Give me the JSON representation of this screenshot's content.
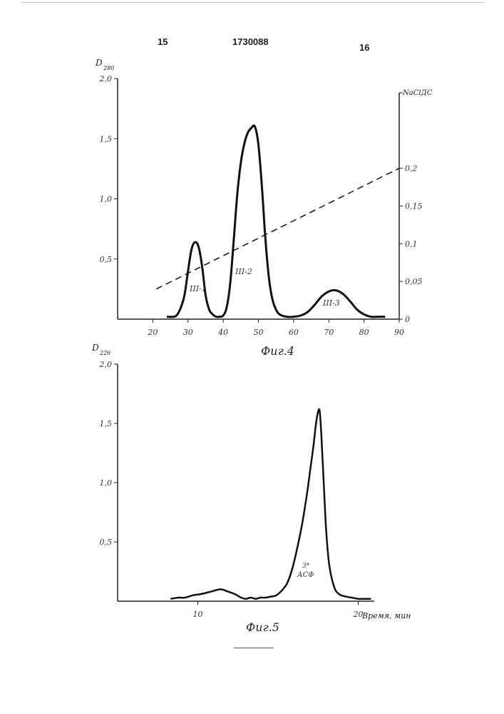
{
  "page": {
    "left_number": "15",
    "patent_number": "1730088",
    "right_number": "16"
  },
  "chart_data": [
    {
      "type": "line",
      "caption": "Фиг.4",
      "ylabel_main": "D",
      "ylabel_sub": "280",
      "ylabel_right": "NaСlДС",
      "xlim": [
        10,
        90
      ],
      "ylim": [
        0,
        2.0
      ],
      "y2lim": [
        0,
        0.3
      ],
      "x_ticks": [
        "20",
        "30",
        "40",
        "50",
        "60",
        "70",
        "80",
        "90"
      ],
      "y_ticks": [
        "2,0",
        "1,5",
        "1,0",
        "0,5"
      ],
      "y2_ticks": [
        "0,2",
        "0,15",
        "0,1",
        "0,05",
        "0"
      ],
      "series": [
        {
          "x": [
            24,
            26,
            27,
            28,
            29,
            30,
            31,
            32,
            33,
            34,
            35,
            36,
            37,
            38,
            39,
            40,
            41,
            42,
            43,
            44,
            45,
            46,
            47,
            48,
            49,
            50,
            51,
            52,
            53,
            54,
            55,
            56,
            58,
            60,
            62,
            64,
            66,
            68,
            70,
            72,
            74,
            76,
            78,
            80,
            82,
            84,
            86
          ],
          "values": [
            0.02,
            0.02,
            0.04,
            0.1,
            0.2,
            0.4,
            0.58,
            0.64,
            0.6,
            0.44,
            0.2,
            0.08,
            0.04,
            0.02,
            0.02,
            0.03,
            0.1,
            0.3,
            0.66,
            1.04,
            1.3,
            1.46,
            1.55,
            1.59,
            1.6,
            1.45,
            1.1,
            0.66,
            0.34,
            0.16,
            0.08,
            0.04,
            0.02,
            0.02,
            0.03,
            0.06,
            0.12,
            0.19,
            0.23,
            0.24,
            0.21,
            0.15,
            0.08,
            0.04,
            0.02,
            0.02,
            0.02
          ]
        },
        {
          "style": "dashed",
          "axis": "right",
          "x": [
            21,
            90
          ],
          "values": [
            0.04,
            0.2
          ]
        }
      ],
      "annotations": [
        "III-1",
        "III-2",
        "III-3"
      ]
    },
    {
      "type": "line",
      "caption": "Фиг.5",
      "ylabel_main": "D",
      "ylabel_sub": "226",
      "xlabel": "Время, мин",
      "xlim": [
        5,
        21
      ],
      "ylim": [
        0,
        2.0
      ],
      "x_ticks": [
        "10",
        "20"
      ],
      "y_ticks": [
        "2,0",
        "1,5",
        "1,0",
        "0,5"
      ],
      "series": [
        {
          "x": [
            8.3,
            8.8,
            9.2,
            9.7,
            10.2,
            10.8,
            11.4,
            11.9,
            12.3,
            12.7,
            13.0,
            13.3,
            13.6,
            13.9,
            14.2,
            14.6,
            14.9,
            15.3,
            15.6,
            15.9,
            16.2,
            16.5,
            16.8,
            17.0,
            17.2,
            17.35,
            17.5,
            17.6,
            17.7,
            17.85,
            18.0,
            18.2,
            18.5,
            18.8,
            19.2,
            19.6,
            20.0,
            20.4,
            20.8
          ],
          "values": [
            0.02,
            0.03,
            0.03,
            0.05,
            0.06,
            0.08,
            0.1,
            0.08,
            0.06,
            0.03,
            0.02,
            0.03,
            0.02,
            0.03,
            0.03,
            0.04,
            0.05,
            0.1,
            0.16,
            0.28,
            0.45,
            0.65,
            0.9,
            1.1,
            1.3,
            1.48,
            1.6,
            1.6,
            1.4,
            1.0,
            0.6,
            0.3,
            0.12,
            0.06,
            0.04,
            0.03,
            0.02,
            0.02,
            0.02
          ]
        }
      ],
      "annotations": [
        "3*",
        "АСФ"
      ]
    }
  ]
}
